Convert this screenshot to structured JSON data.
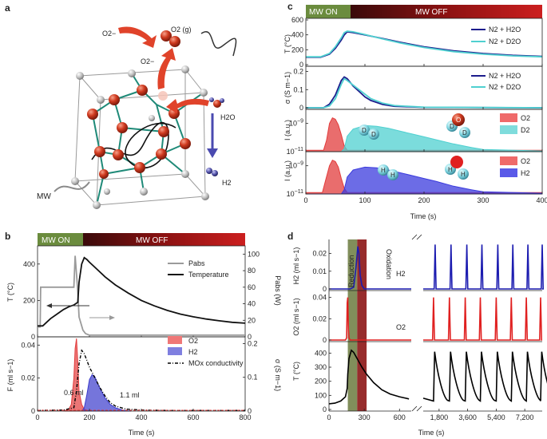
{
  "panels": {
    "a": {
      "label": "a",
      "o2_gas": "O2 (g)",
      "o2_minus_top": "O2−",
      "o2_minus_mid": "O2−",
      "h2o": "H2O",
      "h2": "H2",
      "mw": "MW"
    },
    "b": {
      "label": "b",
      "banner": {
        "on": "MW ON",
        "off": "MW OFF"
      },
      "ylabel_T": "T (°C)",
      "ylabel_P": "Pabs (W)",
      "ylabel_F": "F (ml s−1)",
      "ylabel_sigma": "σ (S m−1)",
      "xlabel": "Time (s)",
      "legend_top": [
        "Pabs",
        "Temperature"
      ],
      "legend_bottom": [
        "O2",
        "H2",
        "MOx conductivity"
      ],
      "annot_o2": "0.6 ml",
      "annot_h2": "1.1 ml"
    },
    "c": {
      "label": "c",
      "banner": {
        "on": "MW ON",
        "off": "MW  OFF"
      },
      "ylabel_T": "T (°C)",
      "ylabel_sigma": "σ (S m−1)",
      "ylabel_I": "I (a.u.)",
      "xlabel": "Time (s)",
      "legend_T": [
        "N2 + H2O",
        "N2 + D2O"
      ],
      "legend_sigma": [
        "N2 + H2O",
        "N2 + D2O"
      ],
      "legend_D": [
        "O2",
        "D2"
      ],
      "legend_H": [
        "O2",
        "H2"
      ],
      "atom_D": "D",
      "atom_H": "H",
      "atom_O": "O"
    },
    "d": {
      "label": "d",
      "ylabel_H2": "H2 (ml s−1)",
      "ylabel_O2": "O2 (ml s−1)",
      "ylabel_T": "T (°C)",
      "xlabel": "Time (s)",
      "reduction": "Reduction",
      "oxidation": "Oxidation",
      "label_H2": "H2",
      "label_O2": "O2"
    }
  },
  "chart_data": [
    {
      "panel": "b",
      "type": "line",
      "x_range": [
        0,
        800
      ],
      "xticks": [
        0,
        200,
        400,
        600,
        800
      ],
      "top": {
        "yleft": {
          "label": "T (°C)",
          "ylim": [
            0,
            500
          ],
          "ticks": [
            0,
            200,
            400
          ]
        },
        "yright": {
          "label": "Pabs (W)",
          "ylim": [
            0,
            110
          ],
          "ticks": [
            0,
            20,
            40,
            60,
            80,
            100
          ]
        },
        "series": [
          {
            "name": "Pabs",
            "axis": "right",
            "color": "#9a9a9a",
            "x": [
              0,
              10,
              12,
              140,
              145,
              155,
              160,
              175,
              185,
              200,
              230,
              300,
              400,
              600,
              800
            ],
            "y": [
              12,
              12,
              60,
              60,
              98,
              55,
              24,
              8,
              4,
              2,
              2,
              2,
              2,
              2,
              2
            ]
          },
          {
            "name": "Temperature",
            "axis": "left",
            "color": "#111111",
            "x": [
              0,
              20,
              50,
              80,
              100,
              120,
              140,
              155,
              160,
              170,
              180,
              190,
              200,
              230,
              260,
              300,
              350,
              400,
              450,
              500,
              550,
              600,
              650,
              700,
              750,
              800
            ],
            "y": [
              60,
              60,
              100,
              130,
              150,
              165,
              175,
              190,
              300,
              400,
              435,
              425,
              410,
              370,
              330,
              285,
              240,
              200,
              170,
              145,
              125,
              110,
              98,
              88,
              80,
              75
            ]
          }
        ]
      },
      "bottom": {
        "yleft": {
          "label": "F (ml s−1)",
          "ylim": [
            0,
            0.045
          ],
          "ticks": [
            0,
            0.02,
            0.04
          ]
        },
        "yright": {
          "label": "σ (S m−1)",
          "ylim": [
            0,
            0.22
          ],
          "ticks": [
            0,
            0.1,
            0.2
          ]
        },
        "series": [
          {
            "name": "O2",
            "axis": "left",
            "color": "#e23c3c",
            "fill": true,
            "x": [
              100,
              120,
              130,
              140,
              145,
              150,
              155,
              160,
              170,
              180,
              200
            ],
            "y": [
              0,
              0.001,
              0.004,
              0.02,
              0.038,
              0.044,
              0.03,
              0.012,
              0.004,
              0.001,
              0
            ]
          },
          {
            "name": "H2",
            "axis": "left",
            "color": "#3b3bcc",
            "fill": true,
            "x": [
              170,
              180,
              190,
              200,
              210,
              220,
              240,
              260,
              280,
              300,
              330,
              360
            ],
            "y": [
              0,
              0.002,
              0.01,
              0.019,
              0.022,
              0.021,
              0.014,
              0.008,
              0.004,
              0.002,
              0.0005,
              0
            ]
          },
          {
            "name": "MOx conductivity",
            "axis": "right",
            "color": "#000000",
            "dash": true,
            "x": [
              0,
              100,
              140,
              150,
              160,
              170,
              180,
              190,
              200,
              220,
              240,
              260,
              280,
              300,
              340,
              400,
              500,
              800
            ],
            "y": [
              0.002,
              0.003,
              0.01,
              0.06,
              0.14,
              0.18,
              0.17,
              0.15,
              0.13,
              0.1,
              0.07,
              0.045,
              0.025,
              0.015,
              0.006,
              0.003,
              0.002,
              0.002
            ]
          }
        ]
      }
    },
    {
      "panel": "c",
      "type": "line",
      "x_range": [
        0,
        400
      ],
      "xticks": [
        0,
        100,
        200,
        300,
        400
      ],
      "subplots": [
        {
          "name": "temperature",
          "ylabel": "T (°C)",
          "ylim": [
            0,
            600
          ],
          "ticks": [
            0,
            200,
            400,
            600
          ],
          "series": [
            {
              "name": "N2 + H2O",
              "color": "#1c1c8c",
              "x": [
                0,
                25,
                40,
                50,
                60,
                65,
                70,
                80,
                100,
                130,
                160,
                200,
                250,
                300,
                350,
                400
              ],
              "y": [
                100,
                100,
                140,
                220,
                330,
                400,
                440,
                430,
                400,
                350,
                300,
                240,
                185,
                150,
                125,
                110
              ]
            },
            {
              "name": "N2 + D2O",
              "color": "#4fd0d0",
              "x": [
                0,
                25,
                40,
                50,
                60,
                65,
                70,
                80,
                100,
                130,
                160,
                200,
                250,
                300,
                350,
                400
              ],
              "y": [
                105,
                105,
                150,
                240,
                360,
                430,
                450,
                440,
                405,
                345,
                290,
                230,
                175,
                140,
                118,
                105
              ]
            }
          ]
        },
        {
          "name": "conductivity",
          "ylabel": "σ (S m−1)",
          "ylim": [
            0,
            0.22
          ],
          "ticks": [
            0,
            0.1,
            0.2
          ],
          "series": [
            {
              "name": "N2 + H2O",
              "color": "#1c1c8c",
              "x": [
                0,
                30,
                40,
                50,
                55,
                60,
                65,
                70,
                80,
                90,
                100,
                110,
                130,
                150,
                200,
                400
              ],
              "y": [
                0,
                0,
                0.02,
                0.07,
                0.11,
                0.15,
                0.17,
                0.16,
                0.12,
                0.09,
                0.06,
                0.04,
                0.018,
                0.008,
                0.002,
                0
              ]
            },
            {
              "name": "N2 + D2O",
              "color": "#4fd0d0",
              "x": [
                0,
                30,
                40,
                50,
                55,
                60,
                65,
                70,
                80,
                90,
                100,
                110,
                130,
                150,
                200,
                400
              ],
              "y": [
                0,
                0,
                0.01,
                0.05,
                0.09,
                0.13,
                0.16,
                0.15,
                0.125,
                0.1,
                0.075,
                0.05,
                0.025,
                0.012,
                0.003,
                0
              ]
            }
          ]
        },
        {
          "name": "ms_D2",
          "ylabel": "I (a.u.)",
          "log": true,
          "ylim_exp": [
            -11,
            -8
          ],
          "ticks_exp": [
            -11,
            -9
          ],
          "series": [
            {
              "name": "O2",
              "color": "#e23c3c",
              "fill": true,
              "x": [
                0,
                30,
                35,
                40,
                45,
                50,
                55,
                60,
                65,
                70,
                400
              ],
              "y_exp": [
                -10.9,
                -10.9,
                -10.2,
                -9.0,
                -8.6,
                -8.7,
                -9.1,
                -9.8,
                -10.6,
                -10.9,
                -10.9
              ]
            },
            {
              "name": "D2",
              "color": "#4fd0d0",
              "fill": true,
              "x": [
                0,
                60,
                65,
                70,
                80,
                100,
                120,
                140,
                160,
                180,
                200,
                220,
                250,
                280,
                300,
                400
              ],
              "y_exp": [
                -11,
                -11,
                -10.8,
                -9.9,
                -9.4,
                -9.15,
                -9.2,
                -9.35,
                -9.55,
                -9.75,
                -9.95,
                -10.15,
                -10.45,
                -10.7,
                -10.85,
                -10.95
              ]
            }
          ]
        },
        {
          "name": "ms_H2",
          "ylabel": "I (a.u.)",
          "log": true,
          "ylim_exp": [
            -11,
            -8
          ],
          "ticks_exp": [
            -11,
            -9
          ],
          "series": [
            {
              "name": "O2",
              "color": "#e23c3c",
              "fill": true,
              "x": [
                0,
                28,
                33,
                40,
                45,
                50,
                55,
                60,
                65,
                70,
                400
              ],
              "y_exp": [
                -10.9,
                -10.9,
                -10.1,
                -9.0,
                -8.6,
                -8.7,
                -9.1,
                -9.9,
                -10.6,
                -10.9,
                -10.9
              ]
            },
            {
              "name": "H2",
              "color": "#3b3bdd",
              "fill": true,
              "x": [
                0,
                60,
                65,
                70,
                80,
                100,
                120,
                140,
                160,
                180,
                200,
                220,
                250,
                280,
                300,
                400
              ],
              "y_exp": [
                -11,
                -11,
                -10.7,
                -9.8,
                -9.3,
                -9.1,
                -9.15,
                -9.3,
                -9.5,
                -9.7,
                -9.9,
                -10.1,
                -10.45,
                -10.7,
                -10.85,
                -10.95
              ]
            }
          ]
        }
      ]
    },
    {
      "panel": "d",
      "type": "line",
      "segment1_x_range": [
        0,
        700
      ],
      "segment1_xticks": [
        0,
        300,
        600
      ],
      "segment2_x_range": [
        800,
        8300
      ],
      "segment2_xticks": [
        1800,
        3600,
        5400,
        7200
      ],
      "segment2_xtick_labels": [
        "1,800",
        "3,600",
        "5,400",
        "7,200"
      ],
      "reduction_span": [
        160,
        240
      ],
      "oxidation_span": [
        240,
        320
      ],
      "subplots": [
        {
          "name": "H2",
          "ylabel": "H2 (ml s−1)",
          "ylim": [
            0,
            0.027
          ],
          "ticks": [
            0,
            0.01,
            0.02
          ],
          "color": "#1c1cb0",
          "seg1_x": [
            0,
            180,
            210,
            230,
            245,
            255,
            265,
            280,
            300,
            700
          ],
          "seg1_y": [
            0,
            0,
            0.001,
            0.012,
            0.024,
            0.02,
            0.008,
            0.002,
            0,
            0
          ],
          "cycle_peaks_x": [
            1550,
            2550,
            3550,
            4500,
            5500,
            6450,
            7400,
            8300
          ],
          "peak_value": 0.025
        },
        {
          "name": "O2",
          "ylabel": "O2 (ml s−1)",
          "ylim": [
            0,
            0.045
          ],
          "ticks": [
            0,
            0.02,
            0.04
          ],
          "color": "#e02020",
          "seg1_x": [
            0,
            140,
            150,
            155,
            160,
            165,
            170,
            180,
            700
          ],
          "seg1_y": [
            0,
            0,
            0.002,
            0.035,
            0.04,
            0.01,
            0.002,
            0,
            0
          ],
          "cycle_peaks_x": [
            1450,
            2450,
            3450,
            4400,
            5400,
            6350,
            7300,
            8200
          ],
          "peak_value": 0.04
        },
        {
          "name": "temperature",
          "ylabel": "T (°C)",
          "ylim": [
            0,
            470
          ],
          "ticks": [
            0,
            100,
            200,
            300,
            400
          ],
          "color": "#000000",
          "seg1_x": [
            0,
            50,
            100,
            140,
            155,
            160,
            170,
            190,
            210,
            240,
            280,
            320,
            380,
            450,
            520,
            600,
            680
          ],
          "seg1_y": [
            40,
            45,
            60,
            90,
            150,
            250,
            360,
            420,
            405,
            360,
            300,
            250,
            190,
            140,
            110,
            90,
            75
          ],
          "cycle_starts_x": [
            1450,
            2450,
            3450,
            4400,
            5400,
            6350,
            7300,
            8200
          ],
          "cycle_peak": 410,
          "cycle_base": 60
        }
      ]
    }
  ]
}
